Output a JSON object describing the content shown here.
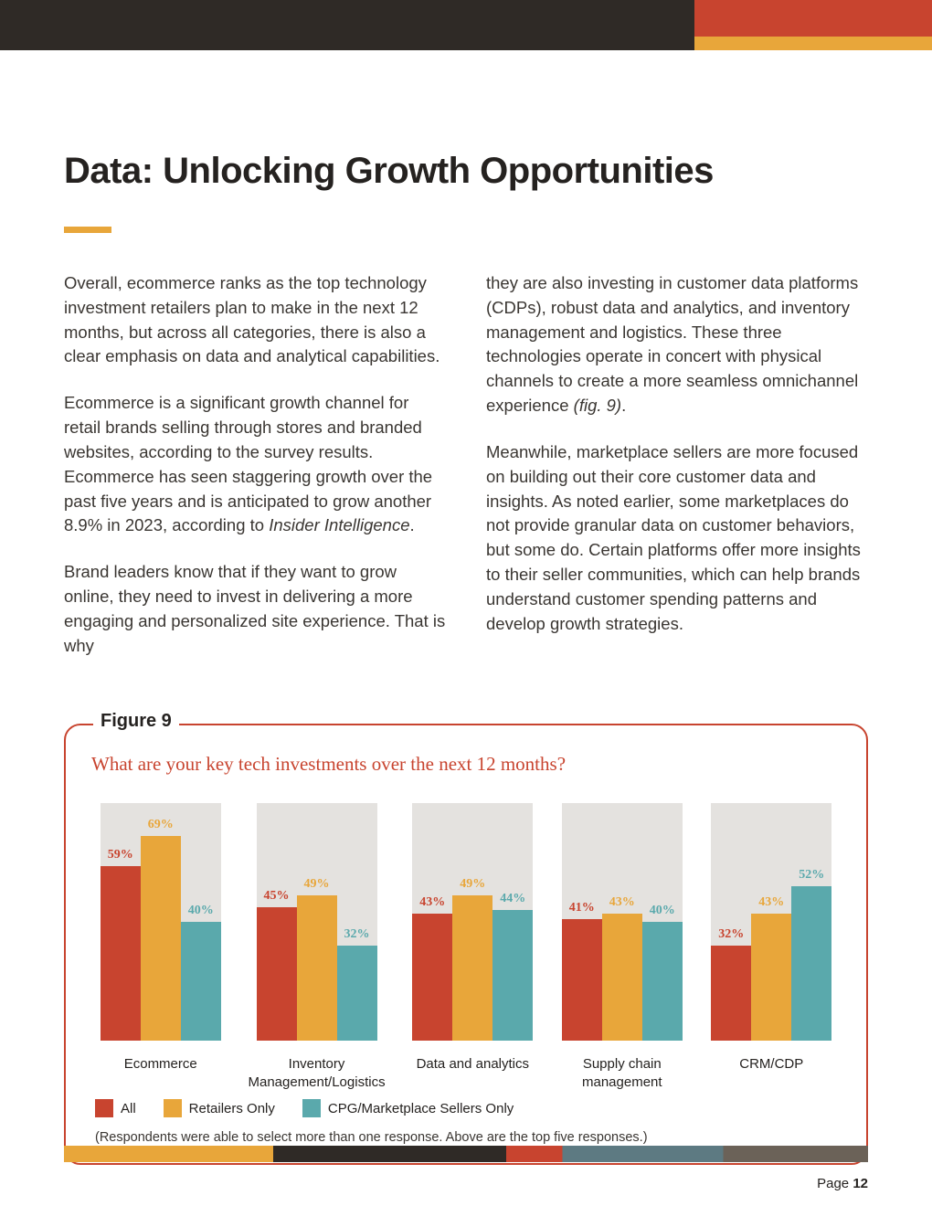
{
  "header": {
    "bg": "#2f2a26",
    "accent1": "#c8442f",
    "accent2": "#e8a63a"
  },
  "title": "Data: Unlocking Growth Opportunities",
  "underline_color": "#e8a63a",
  "body": {
    "p1": "Overall, ecommerce ranks as the top technology investment retailers plan to make in the next 12 months, but across all categories, there is also a clear emphasis on data and analytical capabilities.",
    "p2a": "Ecommerce is a significant growth channel for retail brands selling through stores and branded websites, according to the survey results. Ecommerce has seen staggering growth over the past five years and is anticipated to grow another 8.9% in 2023, according to ",
    "p2b_italic": "Insider Intelligence",
    "p2c": ".",
    "p3": "Brand leaders know that if they want to grow online, they need to invest in delivering a more engaging and personalized site experience. That is why",
    "p4a": "they are also investing in customer data platforms (CDPs), robust data and analytics, and inventory management and logistics. These three technologies operate in concert with physical channels to create a more seamless omnichannel experience ",
    "p4b_italic": "(fig. 9)",
    "p4c": ".",
    "p5": "Meanwhile, marketplace sellers are more focused on building out their core customer data and insights. As noted earlier, some marketplaces do not provide granular data on customer behaviors, but some do. Certain platforms offer more insights to their seller communities, which can help brands understand customer spending patterns and develop growth strategies."
  },
  "figure": {
    "label": "Figure 9",
    "question": "What are your key tech investments over the next 12 months?",
    "note": "(Respondents were able to select more than one response. Above are the top five responses.)",
    "ymax": 80,
    "bar_track_bg": "#e4e2df",
    "series": [
      {
        "name": "All",
        "color": "#c8442f"
      },
      {
        "name": "Retailers Only",
        "color": "#e8a63a"
      },
      {
        "name": "CPG/Marketplace Sellers Only",
        "color": "#5aa9ac"
      }
    ],
    "categories": [
      {
        "label": "Ecommerce",
        "values": [
          59,
          69,
          40
        ]
      },
      {
        "label": "Inventory Management/Logistics",
        "values": [
          45,
          49,
          32
        ]
      },
      {
        "label": "Data and analytics",
        "values": [
          43,
          49,
          44
        ]
      },
      {
        "label": "Supply chain management",
        "values": [
          41,
          43,
          40
        ]
      },
      {
        "label": "CRM/CDP",
        "values": [
          32,
          43,
          52
        ]
      }
    ]
  },
  "footer": {
    "page_label": "Page ",
    "page_number": "12"
  }
}
